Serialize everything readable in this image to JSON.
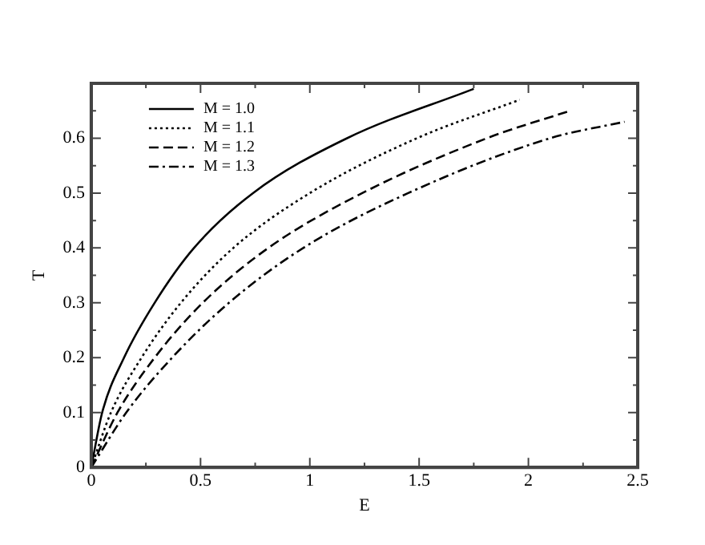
{
  "chart_data": {
    "type": "line",
    "xlabel": "E",
    "ylabel": "T",
    "xlim": [
      0,
      2.5
    ],
    "xticks": [
      0,
      {
        "value": 0.25,
        "label": null
      },
      0.5,
      {
        "value": 0.75,
        "label": null
      },
      1,
      {
        "value": 1.25,
        "label": null
      },
      1.5,
      {
        "value": 1.75,
        "label": null
      },
      2,
      {
        "value": 2.25,
        "label": null
      },
      2.5
    ],
    "ylim": [
      0,
      0.7
    ],
    "yticks": [
      0,
      {
        "value": 0.05,
        "label": null
      },
      0.1,
      {
        "value": 0.15,
        "label": null
      },
      0.2,
      {
        "value": 0.25,
        "label": null
      },
      0.3,
      {
        "value": 0.35,
        "label": null
      },
      0.4,
      {
        "value": 0.45,
        "label": null
      },
      0.5,
      {
        "value": 0.55,
        "label": null
      },
      0.6,
      {
        "value": 0.65,
        "label": null
      },
      {
        "value": 0.7,
        "label": null
      }
    ],
    "grid": false,
    "legend": "top left",
    "marker": "none",
    "series": [
      {
        "name": "M = 1.0",
        "color": "#000000",
        "line_style": "solid",
        "x": [
          0,
          0.05,
          0.15,
          0.29,
          0.47,
          0.74,
          1.17,
          1.75
        ],
        "values": [
          0,
          0.1,
          0.2,
          0.3,
          0.4,
          0.5,
          0.6,
          0.69
        ]
      },
      {
        "name": "M = 1.1",
        "color": "#000000",
        "line_style": "dotted",
        "x": [
          0,
          0.09,
          0.23,
          0.41,
          0.65,
          1.0,
          1.49,
          1.96
        ],
        "values": [
          0,
          0.1,
          0.2,
          0.3,
          0.4,
          0.5,
          0.6,
          0.67
        ]
      },
      {
        "name": "M = 1.2",
        "color": "#000000",
        "line_style": "dashed",
        "x": [
          0,
          0.12,
          0.29,
          0.51,
          0.81,
          1.24,
          1.81,
          2.19
        ],
        "values": [
          0,
          0.1,
          0.2,
          0.3,
          0.4,
          0.5,
          0.6,
          0.65
        ]
      },
      {
        "name": "M = 1.3",
        "color": "#000000",
        "line_style": "dashdot",
        "x": [
          0,
          0.16,
          0.37,
          0.63,
          0.97,
          1.45,
          2.1,
          2.44
        ],
        "values": [
          0,
          0.1,
          0.2,
          0.3,
          0.4,
          0.5,
          0.6,
          0.63
        ]
      }
    ]
  }
}
